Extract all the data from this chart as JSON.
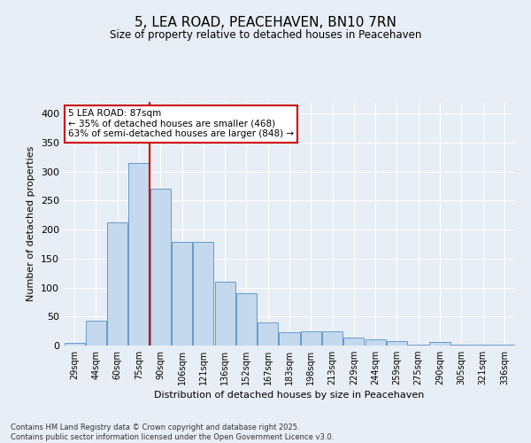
{
  "title": "5, LEA ROAD, PEACEHAVEN, BN10 7RN",
  "subtitle": "Size of property relative to detached houses in Peacehaven",
  "xlabel": "Distribution of detached houses by size in Peacehaven",
  "ylabel": "Number of detached properties",
  "categories": [
    "29sqm",
    "44sqm",
    "60sqm",
    "75sqm",
    "90sqm",
    "106sqm",
    "121sqm",
    "136sqm",
    "152sqm",
    "167sqm",
    "183sqm",
    "198sqm",
    "213sqm",
    "229sqm",
    "244sqm",
    "259sqm",
    "275sqm",
    "290sqm",
    "305sqm",
    "321sqm",
    "336sqm"
  ],
  "values": [
    5,
    43,
    212,
    315,
    270,
    178,
    178,
    110,
    90,
    40,
    23,
    24,
    24,
    13,
    10,
    8,
    2,
    6,
    2,
    1,
    1
  ],
  "bar_color": "#c5d9ee",
  "bar_edge_color": "#6699cc",
  "vline_x_index": 4,
  "vline_color": "#cc0000",
  "annotation_text": "5 LEA ROAD: 87sqm\n← 35% of detached houses are smaller (468)\n63% of semi-detached houses are larger (848) →",
  "annotation_box_color": "#cc0000",
  "background_color": "#e8eef5",
  "plot_bg_color": "#e8eef5",
  "grid_color": "#ffffff",
  "ylim": [
    0,
    420
  ],
  "yticks": [
    0,
    50,
    100,
    150,
    200,
    250,
    300,
    350,
    400
  ],
  "footnote": "Contains HM Land Registry data © Crown copyright and database right 2025.\nContains public sector information licensed under the Open Government Licence v3.0."
}
